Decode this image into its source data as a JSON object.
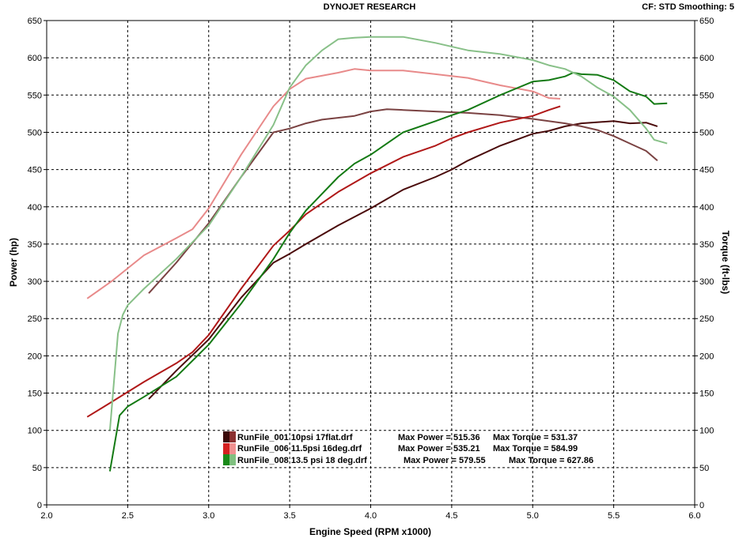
{
  "header": {
    "title": "DYNOJET RESEARCH",
    "settings": "CF: STD  Smoothing: 5"
  },
  "chart_data": {
    "type": "line",
    "xlabel": "Engine Speed (RPM x1000)",
    "ylabel_left": "Power (hp)",
    "ylabel_right": "Torque (ft-lbs)",
    "xlim": [
      2.0,
      6.0
    ],
    "ylim": [
      0,
      650
    ],
    "x_ticks": [
      "2.0",
      "2.5",
      "3.0",
      "3.5",
      "4.0",
      "4.5",
      "5.0",
      "5.5",
      "6.0"
    ],
    "y_ticks": [
      "0",
      "50",
      "100",
      "150",
      "200",
      "250",
      "300",
      "350",
      "400",
      "450",
      "500",
      "550",
      "600",
      "650"
    ],
    "grid": true,
    "legend_placement": "bottom-center",
    "legend": [
      {
        "file": "RunFile_001 10psi 17flat.drf",
        "power": "Max Power = 515.36",
        "torque": "Max Torque = 531.37",
        "color": "#5a1414"
      },
      {
        "file": "RunFile_006 11.5psi 16deg.drf",
        "power": "Max Power = 535.21",
        "torque": "Max Torque = 584.99",
        "color": "#d42020"
      },
      {
        "file": "RunFile_008 13.5 psi 18 deg.drf",
        "power": "Max Power = 579.55",
        "torque": "Max Torque = 627.86",
        "color": "#1a8a1a"
      }
    ],
    "series": [
      {
        "run": "RunFile_001",
        "measure": "Power",
        "color": "#4a0a0a",
        "points": [
          [
            2.63,
            142
          ],
          [
            2.8,
            180
          ],
          [
            3.0,
            222
          ],
          [
            3.2,
            278
          ],
          [
            3.4,
            325
          ],
          [
            3.5,
            337
          ],
          [
            3.6,
            350
          ],
          [
            3.8,
            375
          ],
          [
            4.0,
            398
          ],
          [
            4.2,
            423
          ],
          [
            4.4,
            440
          ],
          [
            4.5,
            450
          ],
          [
            4.6,
            462
          ],
          [
            4.8,
            482
          ],
          [
            5.0,
            498
          ],
          [
            5.1,
            502
          ],
          [
            5.2,
            508
          ],
          [
            5.3,
            512
          ],
          [
            5.5,
            515
          ],
          [
            5.6,
            512
          ],
          [
            5.7,
            513
          ],
          [
            5.77,
            508
          ]
        ]
      },
      {
        "run": "RunFile_001",
        "measure": "Torque",
        "color": "#7a4242",
        "points": [
          [
            2.63,
            284
          ],
          [
            2.8,
            325
          ],
          [
            3.0,
            378
          ],
          [
            3.2,
            440
          ],
          [
            3.4,
            500
          ],
          [
            3.5,
            505
          ],
          [
            3.6,
            512
          ],
          [
            3.7,
            517
          ],
          [
            3.9,
            522
          ],
          [
            4.0,
            528
          ],
          [
            4.1,
            531
          ],
          [
            4.2,
            530
          ],
          [
            4.4,
            528
          ],
          [
            4.6,
            526
          ],
          [
            4.8,
            523
          ],
          [
            5.0,
            518
          ],
          [
            5.2,
            512
          ],
          [
            5.3,
            508
          ],
          [
            5.4,
            503
          ],
          [
            5.5,
            495
          ],
          [
            5.6,
            485
          ],
          [
            5.7,
            475
          ],
          [
            5.77,
            462
          ]
        ]
      },
      {
        "run": "RunFile_006",
        "measure": "Power",
        "color": "#b01818",
        "points": [
          [
            2.25,
            118
          ],
          [
            2.4,
            138
          ],
          [
            2.6,
            165
          ],
          [
            2.8,
            190
          ],
          [
            2.9,
            205
          ],
          [
            3.0,
            228
          ],
          [
            3.2,
            290
          ],
          [
            3.4,
            348
          ],
          [
            3.5,
            368
          ],
          [
            3.6,
            390
          ],
          [
            3.8,
            420
          ],
          [
            4.0,
            445
          ],
          [
            4.2,
            467
          ],
          [
            4.4,
            482
          ],
          [
            4.5,
            492
          ],
          [
            4.6,
            500
          ],
          [
            4.8,
            513
          ],
          [
            5.0,
            522
          ],
          [
            5.1,
            530
          ],
          [
            5.17,
            535
          ]
        ]
      },
      {
        "run": "RunFile_006",
        "measure": "Torque",
        "color": "#e88a8a",
        "points": [
          [
            2.25,
            277
          ],
          [
            2.4,
            300
          ],
          [
            2.6,
            335
          ],
          [
            2.8,
            358
          ],
          [
            2.9,
            370
          ],
          [
            3.0,
            398
          ],
          [
            3.2,
            470
          ],
          [
            3.4,
            535
          ],
          [
            3.5,
            558
          ],
          [
            3.6,
            572
          ],
          [
            3.8,
            580
          ],
          [
            3.9,
            585
          ],
          [
            4.0,
            583
          ],
          [
            4.2,
            583
          ],
          [
            4.4,
            578
          ],
          [
            4.6,
            573
          ],
          [
            4.8,
            563
          ],
          [
            5.0,
            555
          ],
          [
            5.1,
            546
          ],
          [
            5.17,
            545
          ]
        ]
      },
      {
        "run": "RunFile_008",
        "measure": "Power",
        "color": "#147a14",
        "points": [
          [
            2.39,
            45
          ],
          [
            2.45,
            120
          ],
          [
            2.5,
            132
          ],
          [
            2.6,
            145
          ],
          [
            2.8,
            172
          ],
          [
            3.0,
            215
          ],
          [
            3.2,
            270
          ],
          [
            3.4,
            330
          ],
          [
            3.5,
            365
          ],
          [
            3.6,
            395
          ],
          [
            3.8,
            440
          ],
          [
            3.9,
            458
          ],
          [
            4.0,
            470
          ],
          [
            4.2,
            500
          ],
          [
            4.4,
            515
          ],
          [
            4.5,
            523
          ],
          [
            4.6,
            530
          ],
          [
            4.8,
            550
          ],
          [
            5.0,
            568
          ],
          [
            5.1,
            570
          ],
          [
            5.2,
            575
          ],
          [
            5.25,
            580
          ],
          [
            5.3,
            578
          ],
          [
            5.4,
            577
          ],
          [
            5.5,
            570
          ],
          [
            5.6,
            555
          ],
          [
            5.7,
            548
          ],
          [
            5.75,
            538
          ],
          [
            5.83,
            539
          ]
        ]
      },
      {
        "run": "RunFile_008",
        "measure": "Torque",
        "color": "#88c088",
        "points": [
          [
            2.39,
            100
          ],
          [
            2.44,
            230
          ],
          [
            2.47,
            255
          ],
          [
            2.5,
            268
          ],
          [
            2.6,
            290
          ],
          [
            2.8,
            330
          ],
          [
            3.0,
            375
          ],
          [
            3.2,
            440
          ],
          [
            3.4,
            510
          ],
          [
            3.5,
            560
          ],
          [
            3.6,
            590
          ],
          [
            3.7,
            610
          ],
          [
            3.8,
            625
          ],
          [
            3.9,
            627
          ],
          [
            4.0,
            628
          ],
          [
            4.2,
            628
          ],
          [
            4.4,
            620
          ],
          [
            4.6,
            610
          ],
          [
            4.8,
            605
          ],
          [
            5.0,
            597
          ],
          [
            5.1,
            590
          ],
          [
            5.2,
            585
          ],
          [
            5.3,
            575
          ],
          [
            5.4,
            560
          ],
          [
            5.5,
            548
          ],
          [
            5.6,
            530
          ],
          [
            5.7,
            505
          ],
          [
            5.75,
            490
          ],
          [
            5.83,
            485
          ]
        ]
      }
    ]
  }
}
